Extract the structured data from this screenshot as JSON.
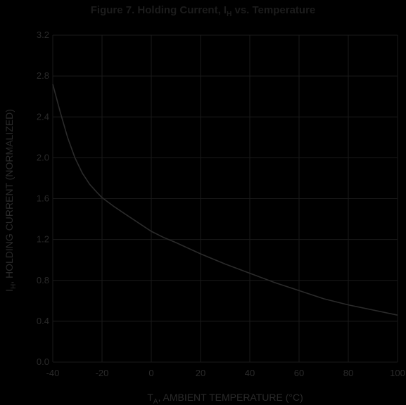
{
  "chart_data": {
    "type": "line",
    "title": "Figure 7. Holding Current, I",
    "title_sub": "H",
    "title_suffix": " vs. Temperature",
    "xlabel": "T",
    "xlabel_sub": "A",
    "xlabel_suffix": ", AMBIENT TEMPERATURE (°C)",
    "ylabel": "I",
    "ylabel_sub": "H",
    "ylabel_suffix": ", HOLDING CURRENT (NORMALIZED)",
    "xlim": [
      -40,
      100
    ],
    "ylim": [
      0,
      3.2
    ],
    "x_ticks": [
      "-40",
      "-20",
      "0",
      "20",
      "40",
      "60",
      "80",
      "100"
    ],
    "y_ticks": [
      "0.0",
      "0.4",
      "0.8",
      "1.2",
      "1.6",
      "2.0",
      "2.4",
      "2.8",
      "3.2"
    ],
    "grid": true,
    "colors": {
      "background": "#000000",
      "grid": "#1a1a1a",
      "curve": "#2b2b2b",
      "text": "#2a2a2a"
    },
    "series": [
      {
        "x": [
          -40,
          -37,
          -34,
          -31,
          -28,
          -25,
          -22,
          -20,
          -15,
          -10,
          -5,
          0,
          5,
          10,
          20,
          30,
          40,
          50,
          60,
          70,
          80,
          90,
          100
        ],
        "y": [
          2.72,
          2.45,
          2.2,
          2.0,
          1.85,
          1.74,
          1.66,
          1.61,
          1.52,
          1.44,
          1.36,
          1.28,
          1.22,
          1.17,
          1.06,
          0.96,
          0.87,
          0.78,
          0.7,
          0.62,
          0.56,
          0.51,
          0.46
        ]
      }
    ]
  }
}
